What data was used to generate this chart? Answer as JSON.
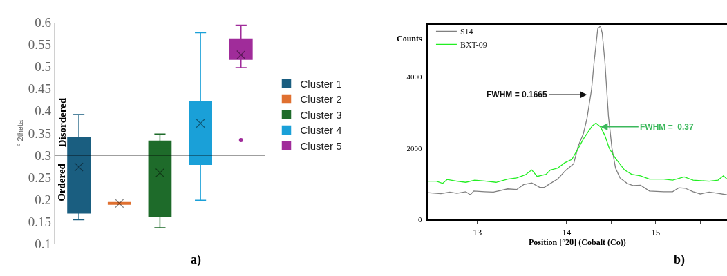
{
  "chart_data": [
    {
      "type": "box",
      "title": "a)",
      "ylabel": "° 2theta",
      "categories": [
        null,
        null,
        null,
        null,
        null
      ],
      "series": [
        {
          "name": "Cluster 1",
          "color": "#1a5e80",
          "boxes": [
            {
              "low": 0.154,
              "q1": 0.169,
              "median": 0.338,
              "q3": 0.34,
              "high": 0.392,
              "mean": 0.273
            },
            null,
            null,
            null,
            null
          ]
        },
        {
          "name": "Cluster 2",
          "color": "#e07030",
          "boxes": [
            null,
            {
              "low": 0.189,
              "q1": 0.189,
              "median": 0.191,
              "q3": 0.193,
              "high": 0.193,
              "mean": 0.191
            },
            null,
            null,
            null
          ]
        },
        {
          "name": "Cluster 3",
          "color": "#1e6b2a",
          "boxes": [
            null,
            null,
            {
              "low": 0.136,
              "q1": 0.161,
              "median": 0.313,
              "q3": 0.332,
              "high": 0.348,
              "mean": 0.26
            },
            null,
            null
          ]
        },
        {
          "name": "Cluster 4",
          "color": "#1aa0d8",
          "boxes": [
            null,
            null,
            null,
            {
              "low": 0.198,
              "q1": 0.279,
              "median": 0.381,
              "q3": 0.421,
              "high": 0.577,
              "mean": 0.372
            },
            null
          ]
        },
        {
          "name": "Cluster 5",
          "color": "#a02c9a",
          "boxes": [
            null,
            null,
            null,
            null,
            {
              "low": 0.498,
              "q1": 0.517,
              "median": 0.54,
              "q3": 0.563,
              "high": 0.594,
              "mean": 0.527,
              "outliers": [
                0.334
              ]
            }
          ]
        }
      ],
      "ylim": [
        0.1,
        0.6
      ],
      "yticks": [
        0.1,
        0.15,
        0.2,
        0.25,
        0.3,
        0.35,
        0.4,
        0.45,
        0.5,
        0.55,
        0.6
      ],
      "ref_lines": [
        {
          "axis": "y",
          "value": 0.3,
          "color": "#000000"
        }
      ],
      "annotations": [
        "Disordered",
        "Ordered"
      ],
      "legend": "right",
      "grid": false
    },
    {
      "type": "line",
      "title": "b)",
      "xlabel": "Position [°2θ] (Cobalt (Co))",
      "ylabel": "Counts",
      "series": [
        {
          "name": "S14",
          "color": "#808080",
          "x": [
            12.44,
            12.59,
            12.69,
            12.77,
            12.87,
            12.92,
            12.96,
            13.08,
            13.18,
            13.34,
            13.44,
            13.52,
            13.61,
            13.7,
            13.75,
            13.8,
            13.9,
            13.99,
            14.08,
            14.13,
            14.19,
            14.23,
            14.28,
            14.31,
            14.35,
            14.38,
            14.4,
            14.43,
            14.47,
            14.51,
            14.55,
            14.6,
            14.68,
            14.75,
            14.83,
            14.93,
            15.09,
            15.19,
            15.26,
            15.33,
            15.42,
            15.5,
            15.6,
            15.7,
            15.8
          ],
          "values": [
            752,
            722,
            765,
            734,
            777,
            691,
            795,
            777,
            765,
            856,
            838,
            979,
            1021,
            899,
            899,
            979,
            1131,
            1376,
            1560,
            2049,
            2416,
            2844,
            3639,
            4434,
            5352,
            5431,
            5229,
            4434,
            2905,
            1988,
            1437,
            1162,
            1009,
            948,
            960,
            795,
            777,
            777,
            887,
            875,
            777,
            716,
            765,
            734,
            691
          ]
        },
        {
          "name": "BXT-09",
          "color": "#22ee22",
          "x": [
            12.44,
            12.54,
            12.61,
            12.66,
            12.77,
            12.87,
            12.97,
            13.1,
            13.21,
            13.34,
            13.44,
            13.54,
            13.61,
            13.67,
            13.77,
            13.82,
            13.9,
            13.98,
            14.06,
            14.13,
            14.19,
            14.24,
            14.29,
            14.33,
            14.38,
            14.43,
            14.48,
            14.55,
            14.65,
            14.73,
            14.83,
            14.93,
            15.09,
            15.19,
            15.32,
            15.42,
            15.6,
            15.7,
            15.76,
            15.8
          ],
          "values": [
            1070,
            1070,
            1009,
            1119,
            1070,
            1040,
            1101,
            1070,
            1040,
            1131,
            1162,
            1254,
            1388,
            1205,
            1266,
            1388,
            1437,
            1590,
            1682,
            1988,
            2263,
            2446,
            2630,
            2703,
            2599,
            2355,
            1988,
            1712,
            1388,
            1266,
            1223,
            1131,
            1131,
            1101,
            1193,
            1101,
            1070,
            1101,
            1223,
            1131
          ]
        }
      ],
      "xlim": [
        12.44,
        15.8
      ],
      "xticks": [
        {
          "value": 12.5,
          "label": null
        },
        13,
        {
          "value": 13.5,
          "label": null
        },
        14,
        {
          "value": 14.5,
          "label": null
        },
        15,
        {
          "value": 15.5,
          "label": null
        }
      ],
      "ylim": [
        0,
        5470
      ],
      "yticks": [
        0,
        2000,
        4000
      ],
      "annotations": [
        {
          "text": "FWHM = 0.1665",
          "x": 14.23,
          "y": 3500
        },
        {
          "text": "FWHM =  0.37",
          "x": 14.38,
          "y": 2599
        }
      ],
      "legend": "top left",
      "grid": false,
      "marker": "none",
      "line_style": "solid"
    }
  ]
}
